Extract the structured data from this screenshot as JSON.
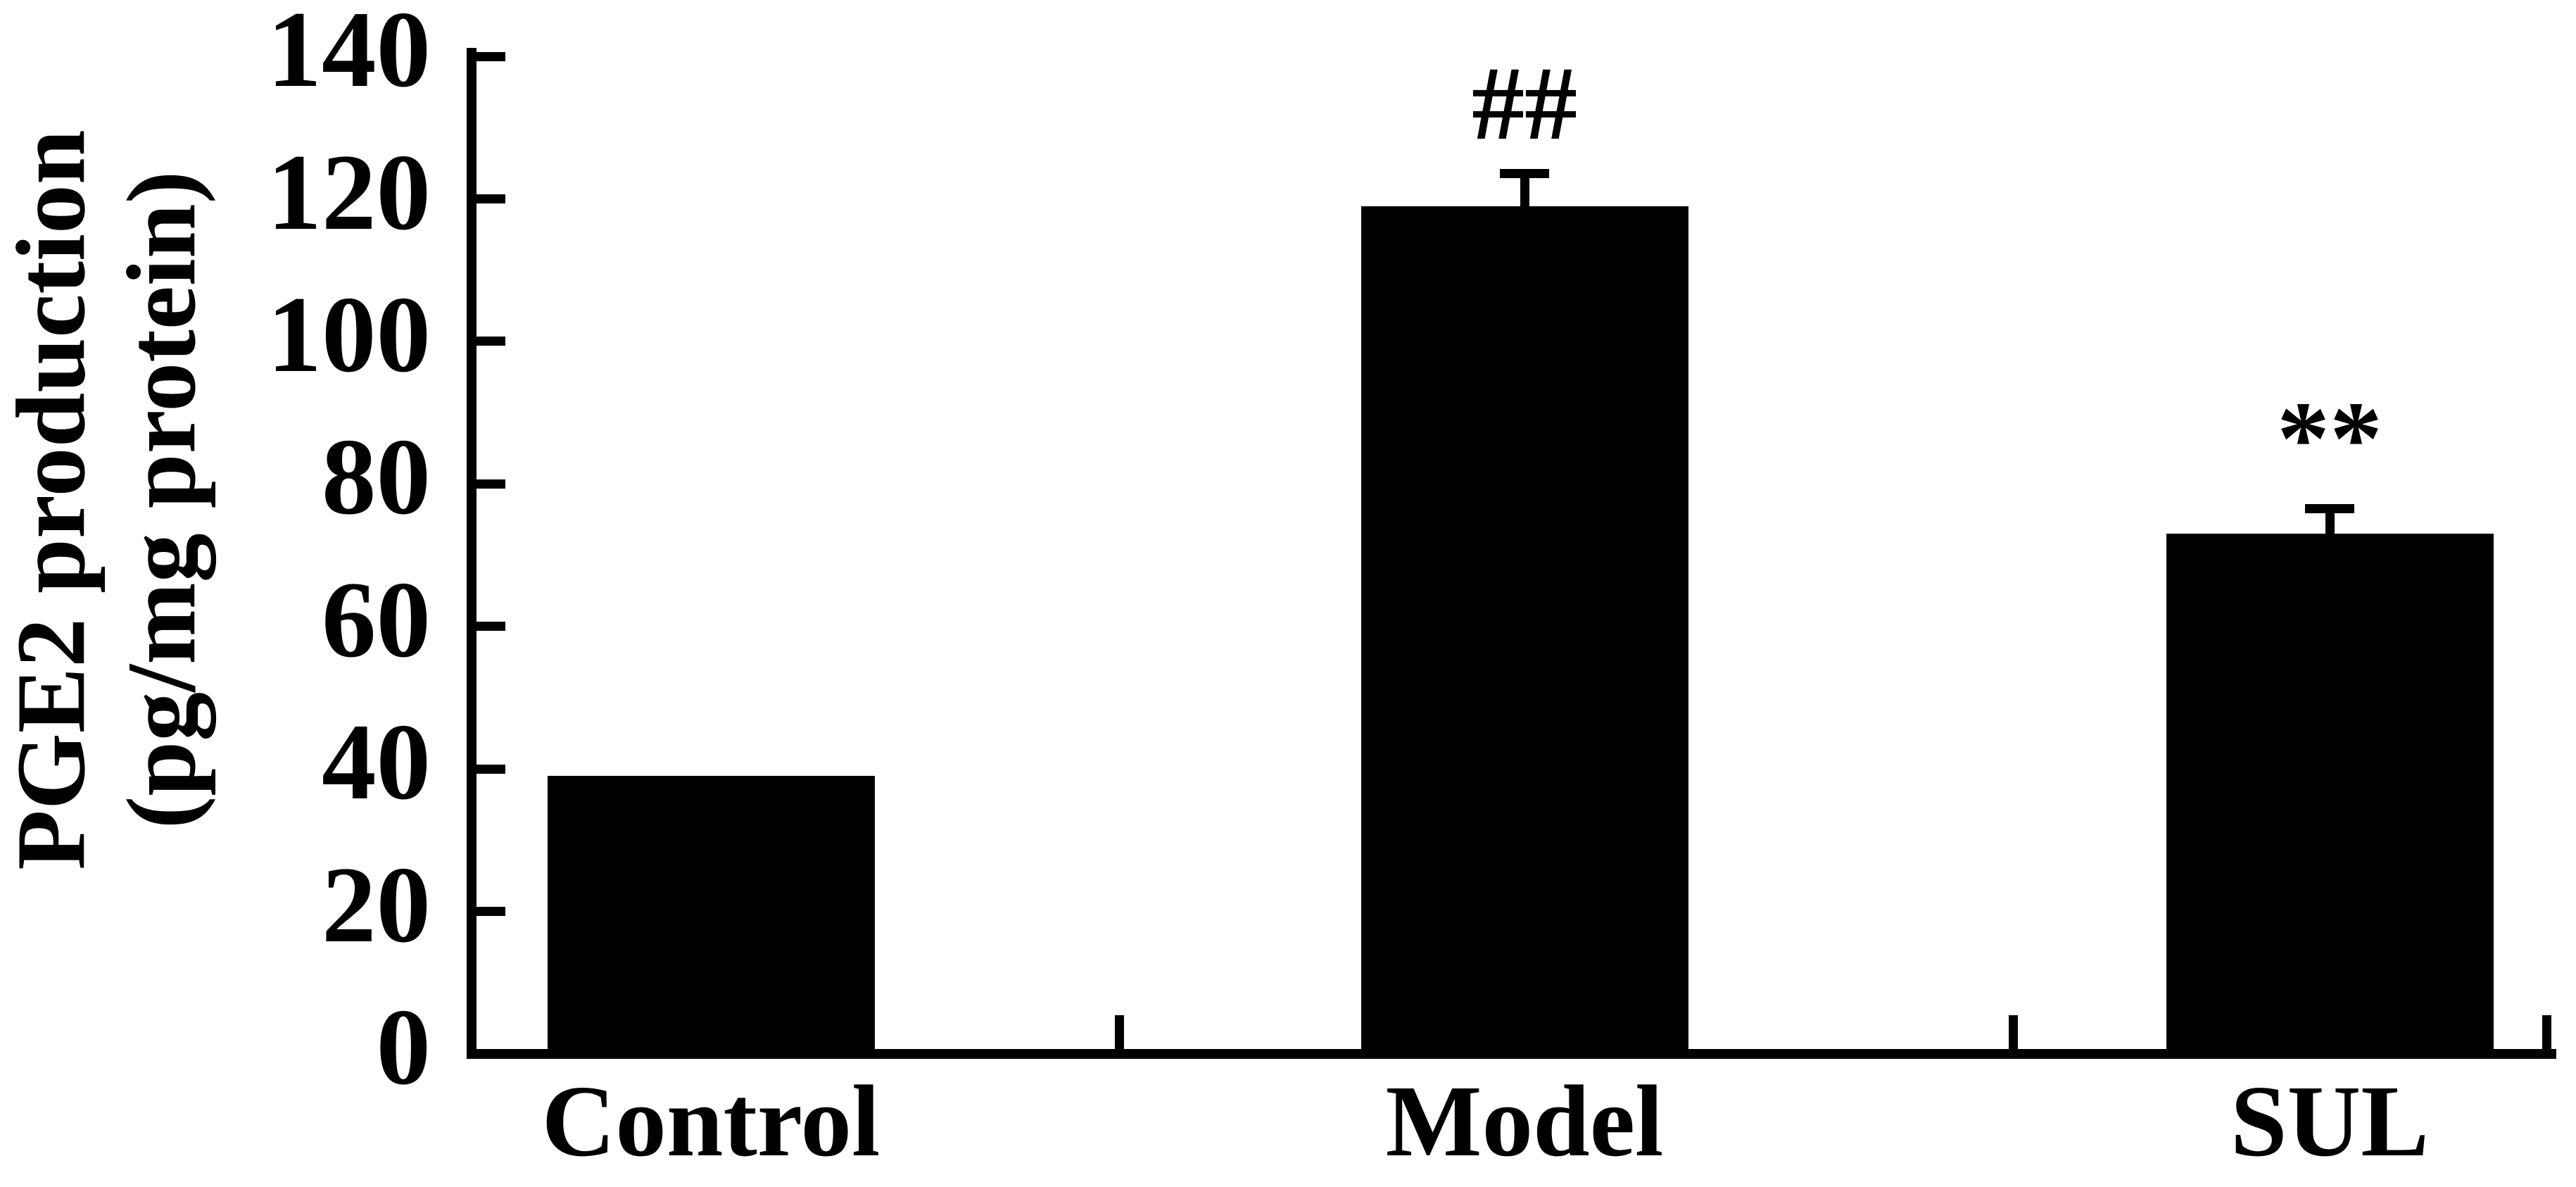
{
  "chart_data": {
    "type": "bar",
    "title": "",
    "categories": [
      "Control",
      "Model",
      "SUL"
    ],
    "values": [
      39,
      119,
      73
    ],
    "errors": [
      0,
      4.5,
      3.5
    ],
    "annotations": [
      "",
      "##",
      "**"
    ],
    "ylabel": "PGE2 production (pg/mg protein)",
    "ylabel_lines": [
      "PGE2 production",
      "(pg/mg protein)"
    ],
    "yticks": [
      0,
      20,
      40,
      60,
      80,
      100,
      120,
      140
    ],
    "ylim": [
      0,
      140
    ],
    "xlabel": "",
    "legend": "none",
    "grid": false,
    "bar_color": "#000000",
    "axis_color": "#000000",
    "background_color": "#ffffff"
  }
}
